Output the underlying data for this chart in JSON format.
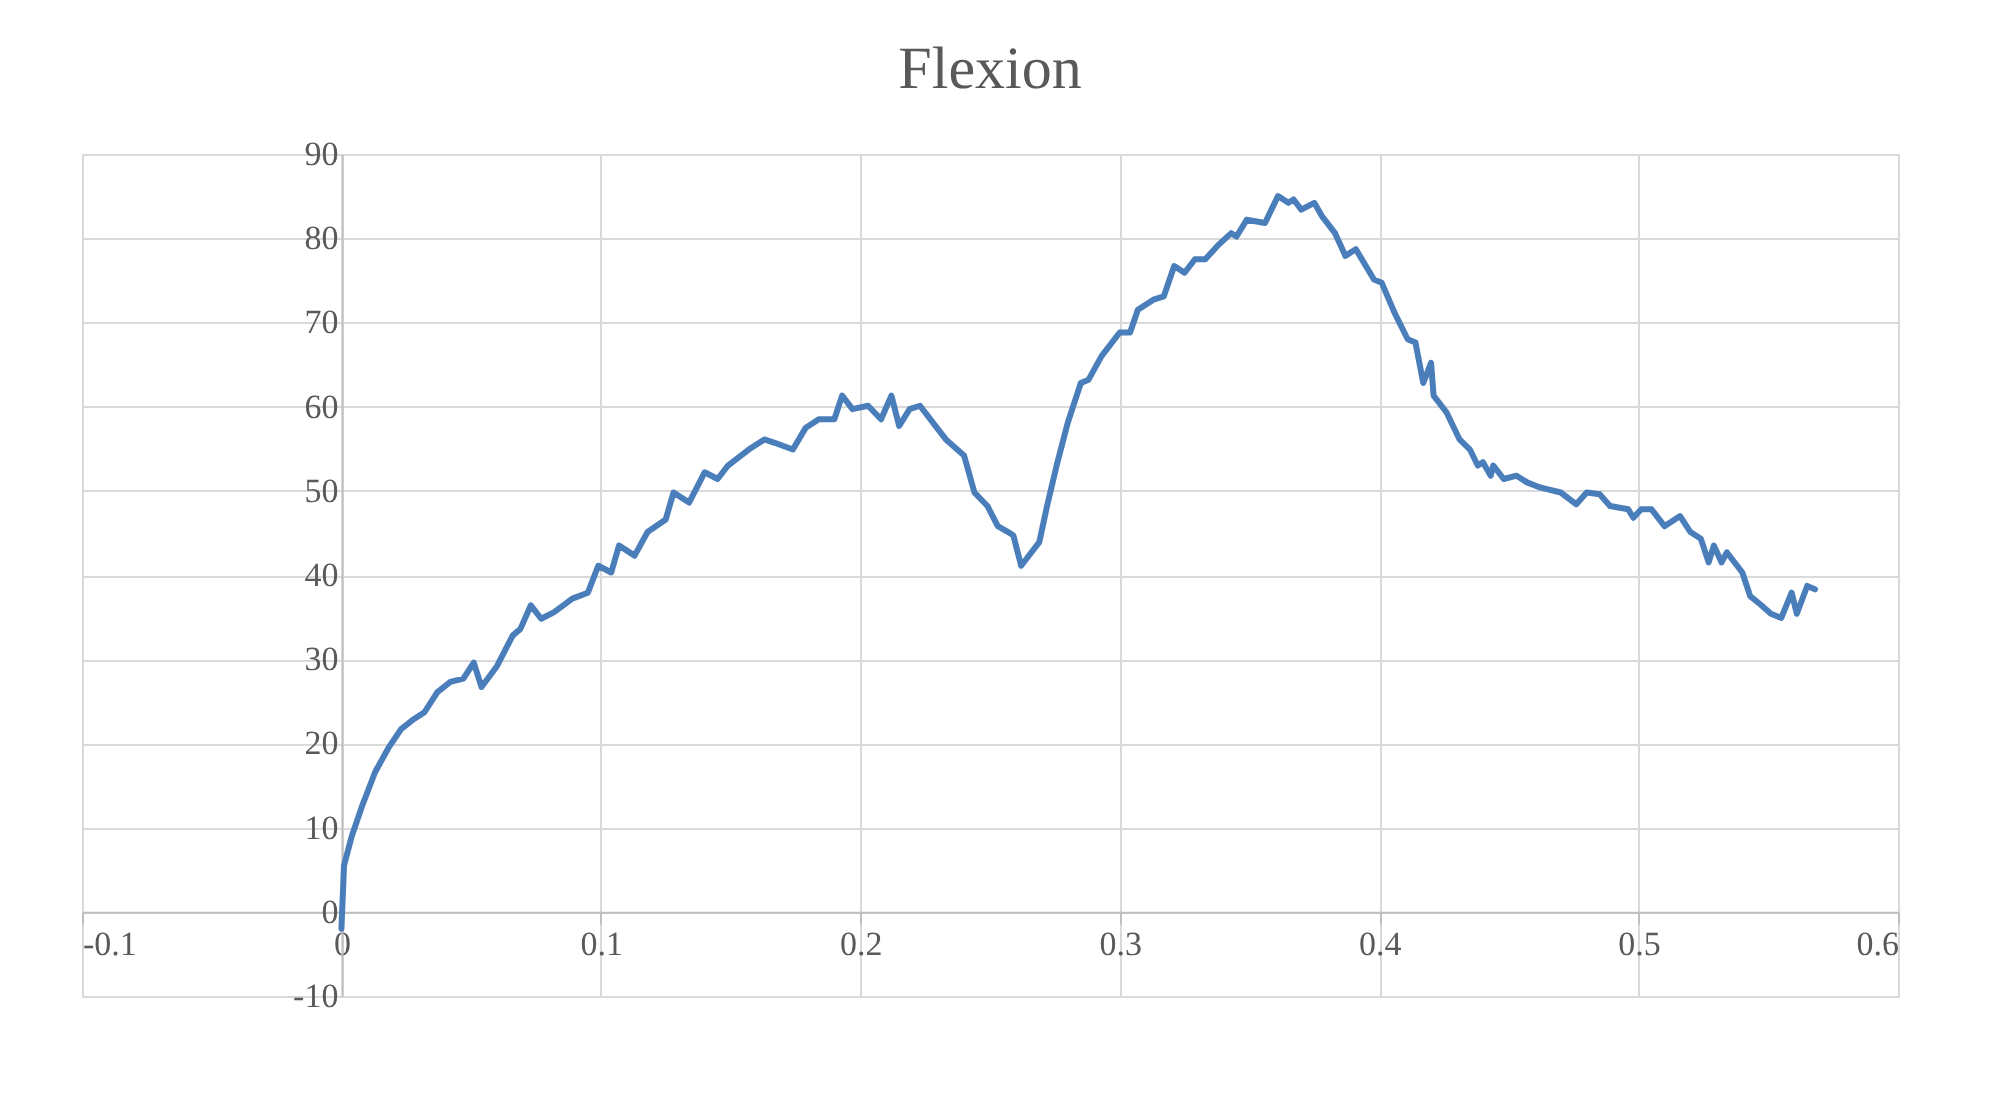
{
  "chart_data": {
    "type": "line",
    "title": "Flexion",
    "x": [
      0,
      0.001,
      0.004,
      0.008,
      0.013,
      0.018,
      0.023,
      0.028,
      0.032,
      0.037,
      0.042,
      0.047,
      0.051,
      0.054,
      0.06,
      0.066,
      0.069,
      0.073,
      0.077,
      0.082,
      0.089,
      0.095,
      0.099,
      0.104,
      0.107,
      0.113,
      0.118,
      0.125,
      0.128,
      0.134,
      0.14,
      0.145,
      0.149,
      0.157,
      0.163,
      0.167,
      0.174,
      0.179,
      0.184,
      0.19,
      0.193,
      0.197,
      0.203,
      0.208,
      0.212,
      0.215,
      0.219,
      0.223,
      0.23,
      0.233,
      0.24,
      0.244,
      0.249,
      0.253,
      0.257,
      0.259,
      0.262,
      0.266,
      0.269,
      0.272,
      0.276,
      0.28,
      0.285,
      0.288,
      0.293,
      0.3,
      0.304,
      0.307,
      0.313,
      0.317,
      0.321,
      0.325,
      0.329,
      0.333,
      0.338,
      0.343,
      0.345,
      0.349,
      0.356,
      0.361,
      0.365,
      0.367,
      0.37,
      0.375,
      0.378,
      0.383,
      0.387,
      0.391,
      0.398,
      0.401,
      0.406,
      0.411,
      0.414,
      0.417,
      0.42,
      0.421,
      0.426,
      0.431,
      0.435,
      0.438,
      0.44,
      0.443,
      0.444,
      0.448,
      0.453,
      0.457,
      0.462,
      0.47,
      0.476,
      0.48,
      0.485,
      0.489,
      0.496,
      0.498,
      0.501,
      0.505,
      0.51,
      0.516,
      0.52,
      0.524,
      0.527,
      0.529,
      0.532,
      0.534,
      0.54,
      0.543,
      0.547,
      0.551,
      0.555,
      0.559,
      0.561,
      0.565,
      0.568
    ],
    "series": [
      {
        "color": "#4a7ebb",
        "values": [
          -2,
          5.5,
          9,
          12.6,
          16.6,
          19.4,
          21.7,
          22.9,
          23.7,
          26.1,
          27.3,
          27.7,
          29.6,
          26.7,
          29.2,
          32.8,
          33.6,
          36.4,
          34.8,
          35.6,
          37.2,
          37.9,
          41.1,
          40.3,
          43.5,
          42.3,
          45.1,
          46.6,
          49.8,
          48.6,
          52.2,
          51.4,
          53,
          54.9,
          56.1,
          55.7,
          54.9,
          57.5,
          58.5,
          58.5,
          61.3,
          59.7,
          60.1,
          58.5,
          61.3,
          57.7,
          59.7,
          60.1,
          57.3,
          56.1,
          54.2,
          49.8,
          48.2,
          45.8,
          45.1,
          44.7,
          41.1,
          42.7,
          43.9,
          48.2,
          53.4,
          58.1,
          62.8,
          63.2,
          66,
          68.8,
          68.8,
          71.5,
          72.7,
          73.1,
          76.7,
          75.9,
          77.5,
          77.5,
          79.2,
          80.6,
          80.2,
          82.2,
          81.8,
          85,
          84.2,
          84.6,
          83.4,
          84.2,
          82.6,
          80.6,
          77.9,
          78.7,
          75.1,
          74.7,
          71.1,
          68,
          67.6,
          62.8,
          65.2,
          61.3,
          59.3,
          56.1,
          54.9,
          53,
          53.4,
          51.8,
          53,
          51.4,
          51.8,
          51,
          50.4,
          49.8,
          48.4,
          49.8,
          49.6,
          48.2,
          47.8,
          46.8,
          47.8,
          47.8,
          45.8,
          47,
          45.1,
          44.3,
          41.5,
          43.5,
          41.5,
          42.7,
          40.3,
          37.5,
          36.5,
          35.4,
          34.9,
          37.9,
          35.4,
          38.7,
          38.3
        ]
      }
    ],
    "xlim": [
      -0.1,
      0.6
    ],
    "xticks": [
      -0.1,
      0,
      0.1,
      0.2,
      0.3,
      0.4,
      0.5,
      0.6
    ],
    "ylim": [
      -10,
      90
    ],
    "yticks": [
      -10,
      0,
      10,
      20,
      30,
      40,
      50,
      60,
      70,
      80,
      90
    ],
    "grid": true,
    "marker": "none",
    "line_style": "solid"
  }
}
